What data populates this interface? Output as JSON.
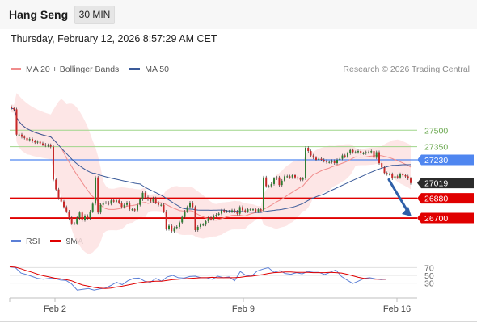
{
  "header": {
    "title": "Hang Seng",
    "timeframe": "30 MIN"
  },
  "datetime": "Thursday, February 12, 2026 8:57:29 AM CET",
  "copyright": "Research © 2026 Trading Central",
  "colors": {
    "bullish": "#2e7d32",
    "bearish": "#c62828",
    "ma20": "#f08c8c",
    "ma50": "#3a5a99",
    "band": "#fde2e2",
    "level_green": "#9fd58a",
    "level_blue": "#4f86f0",
    "level_red": "#e00000",
    "rsi": "#5b7fd6",
    "rsi_ma": "#e00000",
    "arrow": "#2f5fa8"
  },
  "chart_data": [
    {
      "type": "candlestick",
      "legend": [
        "MA 20 + Bollinger Bands",
        "MA 50"
      ],
      "ylim": [
        26590,
        27980
      ],
      "x_ticks": [
        "Feb 2",
        "Feb 9",
        "Feb 16"
      ],
      "levels": [
        {
          "value": 27500,
          "label": "27500",
          "style": "green-line"
        },
        {
          "value": 27350,
          "label": "27350",
          "style": "green-line"
        },
        {
          "value": 27230,
          "label": "27230",
          "style": "blue-line-tag"
        },
        {
          "value": 27019,
          "label": "27019",
          "style": "last-price-tag"
        },
        {
          "value": 26880,
          "label": "26880",
          "style": "red-line-tag"
        },
        {
          "value": 26700,
          "label": "26700",
          "style": "red-line-tag"
        }
      ],
      "forecast_arrow": {
        "from": 27050,
        "to": 26700
      },
      "candles_close": [
        27700,
        27690,
        27460,
        27460,
        27440,
        27430,
        27410,
        27420,
        27400,
        27390,
        27395,
        27380,
        27370,
        27360,
        27365,
        27350,
        27050,
        26960,
        26880,
        26850,
        26800,
        26760,
        26700,
        26650,
        26650,
        26700,
        26750,
        26680,
        26720,
        26700,
        26760,
        26830,
        27070,
        26750,
        26820,
        26840,
        26840,
        26830,
        26860,
        26850,
        26860,
        26840,
        26800,
        26820,
        26840,
        26780,
        26780,
        26770,
        26820,
        26870,
        26930,
        26890,
        26870,
        26850,
        26880,
        26840,
        26820,
        26820,
        26760,
        26600,
        26630,
        26580,
        26610,
        26620,
        26660,
        26710,
        26760,
        26800,
        26840,
        26800,
        26590,
        26620,
        26640,
        26640,
        26670,
        26700,
        26690,
        26720,
        26730,
        26740,
        26770,
        26760,
        26760,
        26760,
        26770,
        26760,
        26740,
        26800,
        26770,
        26760,
        26780,
        26780,
        26780,
        26760,
        26780,
        26770,
        27070,
        26990,
        26990,
        27010,
        27060,
        27070,
        27000,
        27040,
        27080,
        27080,
        27070,
        27090,
        27070,
        27060,
        27050,
        27060,
        27340,
        27310,
        27270,
        27250,
        27230,
        27240,
        27230,
        27220,
        27210,
        27210,
        27220,
        27200,
        27230,
        27240,
        27270,
        27260,
        27290,
        27320,
        27300,
        27300,
        27310,
        27290,
        27290,
        27300,
        27300,
        27310,
        27250,
        27300,
        27200,
        27160,
        27110,
        27100,
        27100,
        27060,
        27080,
        27070,
        27100,
        27090,
        27080,
        27060,
        27019
      ]
    },
    {
      "type": "line",
      "legend": [
        "RSI",
        "9MA"
      ],
      "ylim": [
        0,
        100
      ],
      "y_ticks": [
        70,
        50,
        30
      ],
      "series": [
        {
          "name": "RSI",
          "values": [
            72,
            70,
            56,
            52,
            47,
            42,
            40,
            42,
            42,
            38,
            37,
            28,
            12,
            14,
            16,
            12,
            15,
            17,
            24,
            32,
            26,
            36,
            42,
            43,
            35,
            32,
            42,
            35,
            46,
            50,
            44,
            43,
            47,
            48,
            44,
            44,
            40,
            48,
            44,
            46,
            36,
            60,
            50,
            48,
            61,
            66,
            70,
            58,
            62,
            55,
            53,
            57,
            54,
            60,
            58,
            58,
            52,
            58,
            64,
            47,
            38,
            29,
            35,
            42,
            44,
            41,
            39,
            40
          ]
        },
        {
          "name": "9MA",
          "values": [
            72,
            71,
            67,
            62,
            58,
            53,
            49,
            46,
            43,
            41,
            39,
            36,
            30,
            25,
            22,
            19,
            17,
            16,
            17,
            20,
            22,
            25,
            28,
            31,
            33,
            34,
            35,
            35,
            37,
            39,
            40,
            41,
            42,
            43,
            44,
            44,
            45,
            44,
            44,
            44,
            44,
            45,
            47,
            48,
            50,
            52,
            55,
            57,
            58,
            59,
            59,
            58,
            58,
            58,
            57,
            57,
            57,
            58,
            57,
            56,
            53,
            49,
            45,
            42,
            41,
            40,
            40,
            40
          ]
        }
      ]
    }
  ]
}
